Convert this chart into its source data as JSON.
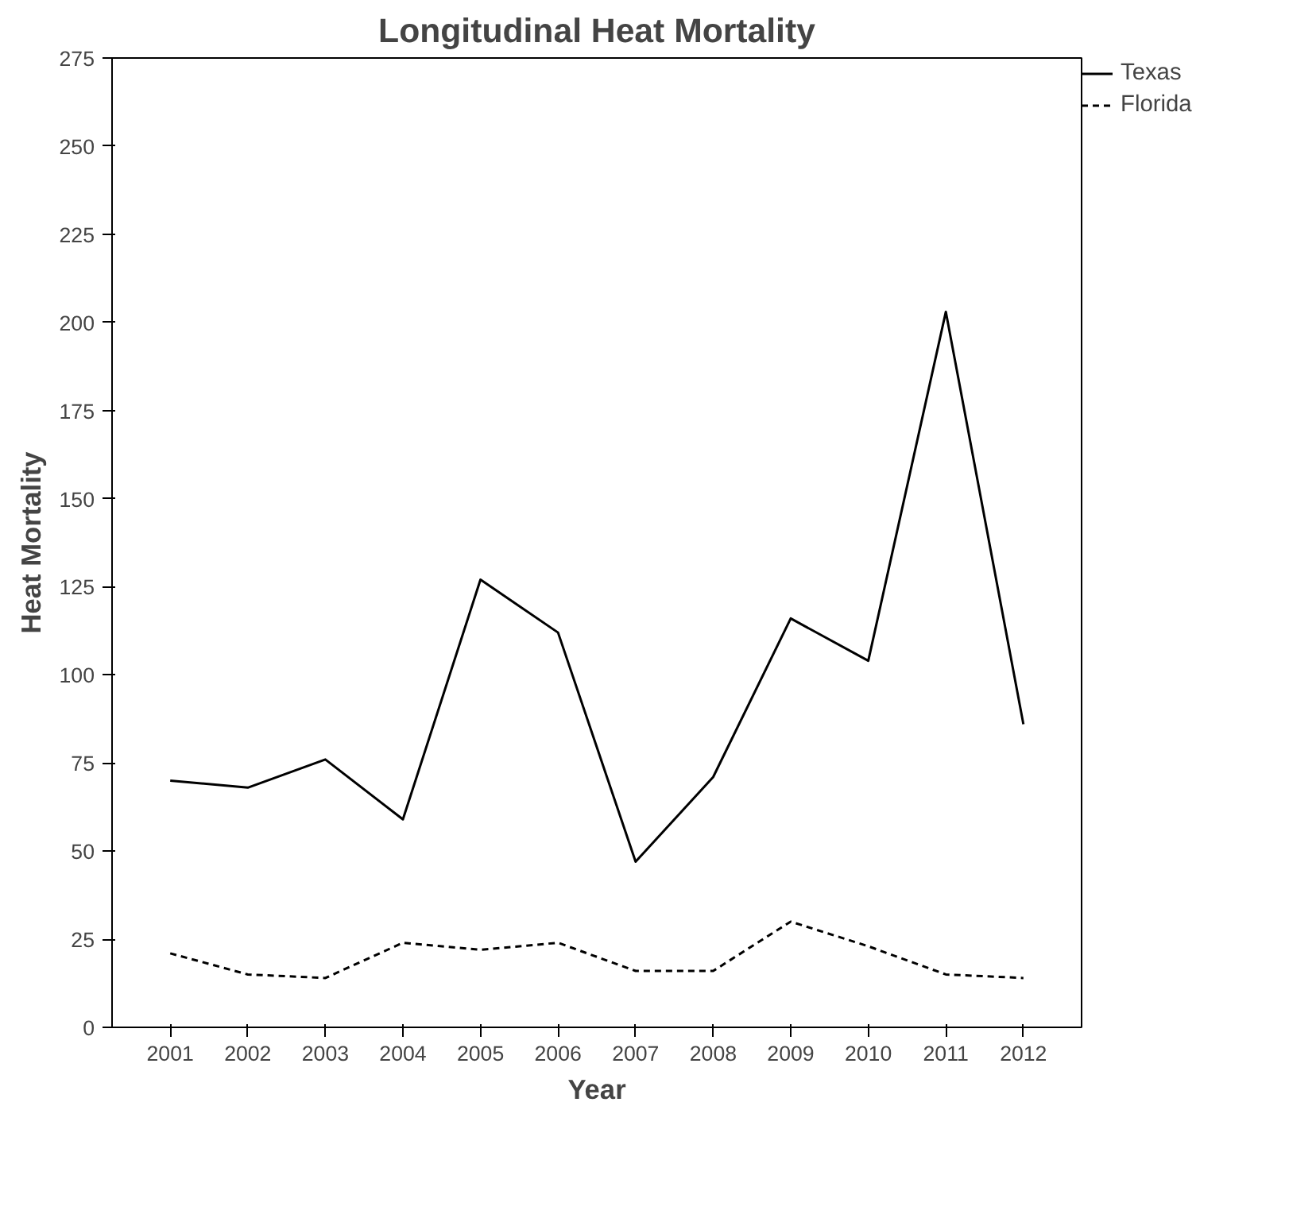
{
  "chart_data": {
    "type": "line",
    "title": "Longitudinal Heat Mortality",
    "xlabel": "Year",
    "ylabel": "Heat Mortality",
    "categories": [
      "2001",
      "2002",
      "2003",
      "2004",
      "2005",
      "2006",
      "2007",
      "2008",
      "2009",
      "2010",
      "2011",
      "2012"
    ],
    "series": [
      {
        "name": "Texas",
        "color": "#000000",
        "line_style": "solid",
        "values": [
          70,
          68,
          76,
          59,
          127,
          112,
          47,
          71,
          116,
          104,
          203,
          86
        ]
      },
      {
        "name": "Florida",
        "color": "#000000",
        "line_style": "dashed",
        "values": [
          21,
          15,
          14,
          24,
          22,
          24,
          16,
          16,
          30,
          23,
          15,
          14
        ]
      }
    ],
    "ylim": [
      0,
      275
    ],
    "yticks": [
      0,
      25,
      50,
      75,
      100,
      125,
      150,
      175,
      200,
      225,
      250,
      275
    ],
    "grid": false,
    "legend": "top right",
    "marker": "none"
  }
}
